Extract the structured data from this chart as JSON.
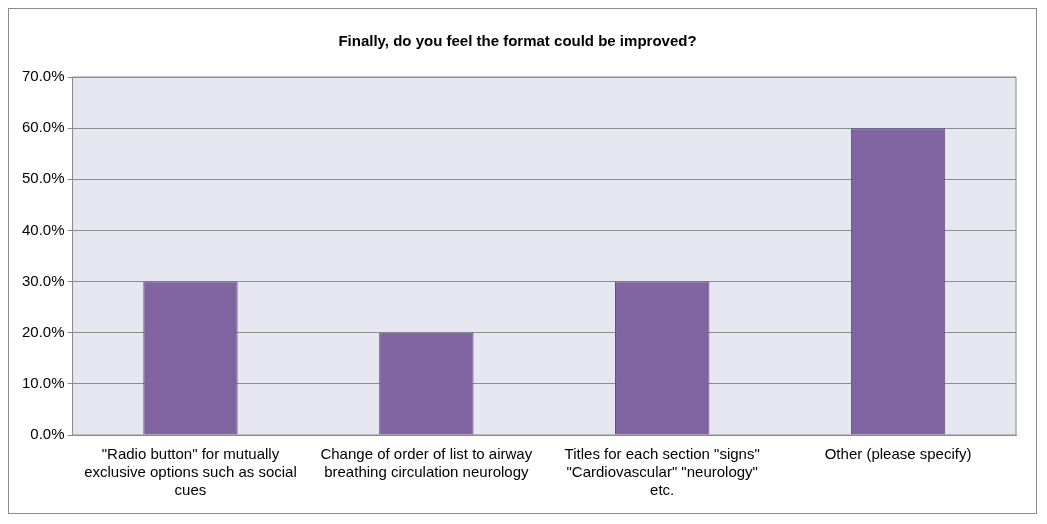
{
  "chart_data": {
    "type": "bar",
    "title": "Finally, do you feel the format could be improved?",
    "categories": [
      "\"Radio button\" for mutually exclusive options such as social cues",
      "Change of order of list to airway breathing circulation neurology",
      "Titles for each section \"signs\" \"Cardiovascular\" \"neurology\" etc.",
      "Other (please specify)"
    ],
    "values": [
      30,
      20,
      30,
      60
    ],
    "color": "#8064a2",
    "ylim": [
      0,
      70
    ],
    "yticks": [
      {
        "value": 0,
        "label": "0.0%"
      },
      {
        "value": 10,
        "label": "10.0%"
      },
      {
        "value": 20,
        "label": "20.0%"
      },
      {
        "value": 30,
        "label": "30.0%"
      },
      {
        "value": 40,
        "label": "40.0%"
      },
      {
        "value": 50,
        "label": "50.0%"
      },
      {
        "value": 60,
        "label": "60.0%"
      },
      {
        "value": 70,
        "label": "70.0%"
      }
    ],
    "grid": "y",
    "legend": false
  }
}
